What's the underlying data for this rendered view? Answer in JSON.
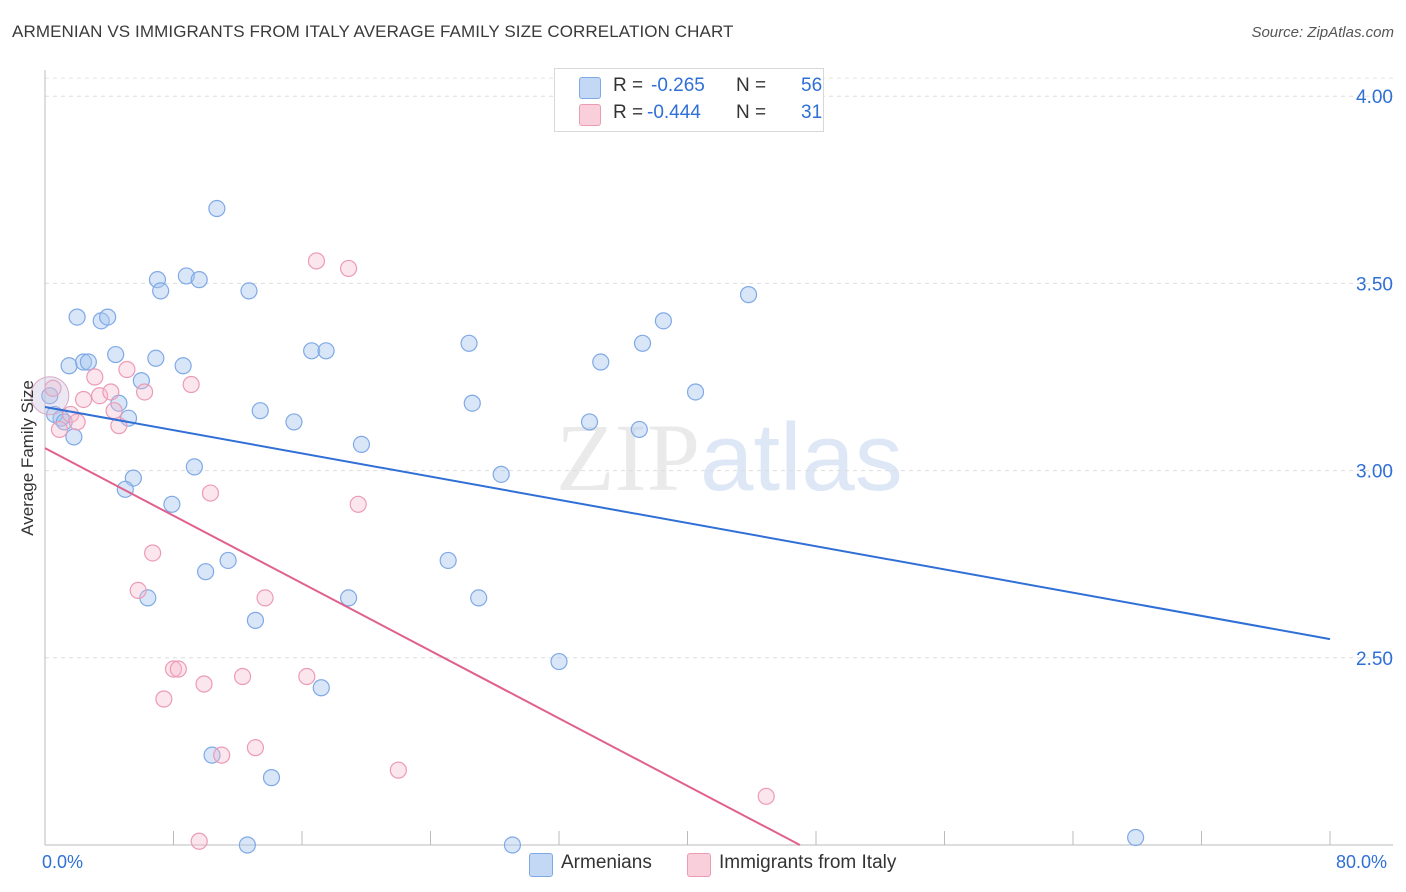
{
  "title": "ARMENIAN VS IMMIGRANTS FROM ITALY AVERAGE FAMILY SIZE CORRELATION CHART",
  "source": "Source: ZipAtlas.com",
  "watermark": {
    "zip": "ZIP",
    "atlas": "atlas"
  },
  "legend": {
    "rows": [
      {
        "r_label": "R =",
        "r_value": "-0.265",
        "n_label": "N =",
        "n_value": "56",
        "color": "#a9c8f0"
      },
      {
        "r_label": "R =",
        "r_value": "-0.444",
        "n_label": "N =",
        "n_value": "31",
        "color": "#f5b8cb"
      }
    ]
  },
  "bottom_legend": [
    {
      "label": "Armenians",
      "color": "#a9c8f0"
    },
    {
      "label": "Immigrants from Italy",
      "color": "#f5b8cb"
    }
  ],
  "chart_data": {
    "type": "scatter",
    "title": "ARMENIAN VS IMMIGRANTS FROM ITALY AVERAGE FAMILY SIZE CORRELATION CHART",
    "xlabel": "",
    "ylabel": "Average Family Size",
    "xlim": [
      0,
      80
    ],
    "ylim": [
      2.0,
      4.07
    ],
    "x_tick_labels": [
      "0.0%",
      "80.0%"
    ],
    "y_ticks": [
      2.5,
      3.0,
      3.5,
      4.0
    ],
    "y_tick_labels": [
      "2.50",
      "3.00",
      "3.50",
      "4.00"
    ],
    "grid": "horizontal dashed",
    "legend_position": "top-center",
    "series": [
      {
        "name": "Armenians",
        "color": "#2f6fd6",
        "fill": "#a9c8f0",
        "points": [
          [
            0.3,
            3.2
          ],
          [
            1.0,
            3.14
          ],
          [
            1.5,
            3.28
          ],
          [
            1.8,
            3.09
          ],
          [
            2.0,
            3.41
          ],
          [
            2.4,
            3.29
          ],
          [
            2.7,
            3.29
          ],
          [
            3.5,
            3.4
          ],
          [
            3.9,
            3.41
          ],
          [
            4.4,
            3.31
          ],
          [
            4.6,
            3.18
          ],
          [
            5.2,
            3.14
          ],
          [
            5.5,
            2.98
          ],
          [
            5.0,
            2.95
          ],
          [
            6.0,
            3.24
          ],
          [
            6.4,
            2.66
          ],
          [
            6.9,
            3.3
          ],
          [
            7.0,
            3.51
          ],
          [
            7.2,
            3.48
          ],
          [
            7.9,
            2.91
          ],
          [
            8.6,
            3.28
          ],
          [
            8.8,
            3.52
          ],
          [
            9.3,
            3.01
          ],
          [
            9.6,
            3.51
          ],
          [
            10.0,
            2.73
          ],
          [
            10.4,
            2.24
          ],
          [
            10.7,
            3.7
          ],
          [
            11.4,
            2.76
          ],
          [
            12.6,
            2.0
          ],
          [
            12.7,
            3.48
          ],
          [
            13.1,
            2.6
          ],
          [
            13.4,
            3.16
          ],
          [
            14.1,
            2.18
          ],
          [
            15.5,
            3.13
          ],
          [
            16.6,
            3.32
          ],
          [
            17.2,
            2.42
          ],
          [
            17.5,
            3.32
          ],
          [
            18.9,
            2.66
          ],
          [
            19.7,
            3.07
          ],
          [
            25.1,
            2.76
          ],
          [
            26.4,
            3.34
          ],
          [
            26.6,
            3.18
          ],
          [
            27.0,
            2.66
          ],
          [
            28.4,
            2.99
          ],
          [
            29.1,
            2.0
          ],
          [
            32.0,
            2.49
          ],
          [
            33.9,
            3.13
          ],
          [
            34.6,
            3.29
          ],
          [
            37.0,
            3.11
          ],
          [
            37.2,
            3.34
          ],
          [
            38.5,
            3.4
          ],
          [
            40.5,
            3.21
          ],
          [
            43.8,
            3.47
          ],
          [
            67.9,
            2.02
          ],
          [
            0.6,
            3.15
          ],
          [
            1.2,
            3.13
          ]
        ]
      },
      {
        "name": "Immigrants from Italy",
        "color": "#e0608e",
        "fill": "#f5b8cb",
        "points": [
          [
            0.5,
            3.22
          ],
          [
            0.9,
            3.11
          ],
          [
            1.6,
            3.15
          ],
          [
            2.0,
            3.13
          ],
          [
            2.4,
            3.19
          ],
          [
            3.1,
            3.25
          ],
          [
            3.4,
            3.2
          ],
          [
            4.1,
            3.21
          ],
          [
            4.3,
            3.16
          ],
          [
            4.6,
            3.12
          ],
          [
            5.1,
            3.27
          ],
          [
            5.8,
            2.68
          ],
          [
            6.2,
            3.21
          ],
          [
            6.7,
            2.78
          ],
          [
            7.4,
            2.39
          ],
          [
            8.0,
            2.47
          ],
          [
            8.3,
            2.47
          ],
          [
            9.1,
            3.23
          ],
          [
            9.6,
            2.01
          ],
          [
            9.9,
            2.43
          ],
          [
            10.3,
            2.94
          ],
          [
            11.0,
            2.24
          ],
          [
            12.3,
            2.45
          ],
          [
            13.1,
            2.26
          ],
          [
            13.7,
            2.66
          ],
          [
            16.3,
            2.45
          ],
          [
            16.9,
            3.56
          ],
          [
            18.9,
            3.54
          ],
          [
            19.5,
            2.91
          ],
          [
            22.0,
            2.2
          ],
          [
            44.9,
            2.13
          ]
        ]
      }
    ],
    "trendlines": [
      {
        "series": "Armenians",
        "x": [
          0,
          80
        ],
        "y": [
          3.17,
          2.55
        ]
      },
      {
        "series": "Immigrants from Italy",
        "x": [
          0,
          47.0
        ],
        "y": [
          3.06,
          2.0
        ]
      }
    ]
  }
}
